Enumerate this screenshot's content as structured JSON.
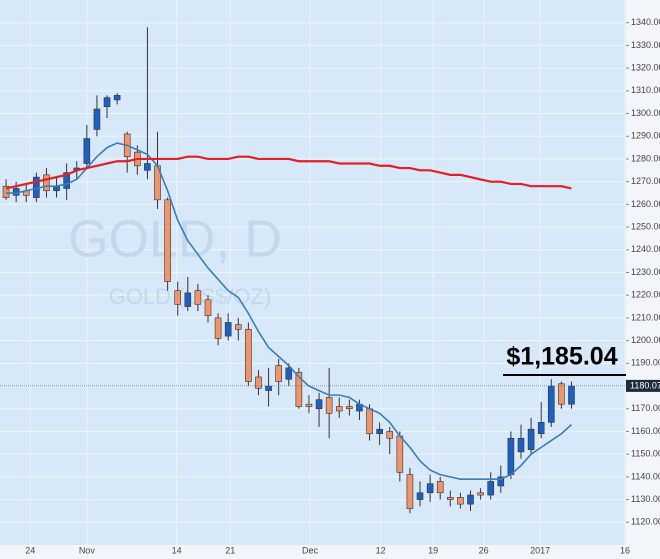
{
  "chart_data": {
    "type": "candlestick",
    "watermark_title": "GOLD, D",
    "watermark_subtitle": "GOLD (US$/OZ)",
    "annotation": "$1,185.04",
    "last_price": 1180.07,
    "up_color": "#1f5fbf",
    "down_color": "#f0956a",
    "x": [
      0,
      1,
      2,
      3,
      4,
      5,
      6,
      7,
      8,
      9,
      10,
      11,
      12,
      13,
      14,
      15,
      16,
      17,
      18,
      19,
      20,
      21,
      22,
      23,
      24,
      25,
      26,
      27,
      28,
      29,
      30,
      31,
      32,
      33,
      34,
      35,
      36,
      37,
      38,
      39,
      40,
      41,
      42,
      43,
      44,
      45,
      46,
      47,
      48,
      49,
      50,
      51,
      52,
      53,
      54,
      55,
      56
    ],
    "open": [
      1268,
      1264,
      1266,
      1263,
      1273,
      1266,
      1267,
      1275,
      1278,
      1293,
      1303,
      1306,
      1291,
      1283,
      1275,
      1277,
      1262,
      1222,
      1215,
      1222,
      1218,
      1210,
      1202,
      1207,
      1205,
      1184,
      1178,
      1189,
      1183,
      1186,
      1172,
      1170,
      1175,
      1171,
      1171,
      1169,
      1170,
      1159,
      1160,
      1158,
      1141,
      1130,
      1133,
      1138,
      1131,
      1131,
      1128,
      1133,
      1132,
      1136,
      1141,
      1151,
      1152,
      1159,
      1164,
      1181,
      1172
    ],
    "high": [
      1271,
      1270,
      1269,
      1274,
      1276,
      1272,
      1278,
      1279,
      1295,
      1308,
      1308,
      1309,
      1292,
      1286,
      1338,
      1292,
      1263,
      1226,
      1228,
      1225,
      1220,
      1212,
      1212,
      1210,
      1208,
      1187,
      1188,
      1192,
      1190,
      1188,
      1176,
      1177,
      1188,
      1175,
      1174,
      1174,
      1172,
      1164,
      1162,
      1160,
      1144,
      1138,
      1141,
      1140,
      1134,
      1133,
      1134,
      1135,
      1142,
      1145,
      1160,
      1163,
      1166,
      1173,
      1183,
      1182,
      1182
    ],
    "low": [
      1262,
      1261,
      1261,
      1261,
      1263,
      1263,
      1262,
      1271,
      1276,
      1290,
      1298,
      1304,
      1274,
      1273,
      1271,
      1258,
      1222,
      1211,
      1213,
      1213,
      1208,
      1198,
      1200,
      1200,
      1180,
      1176,
      1171,
      1176,
      1180,
      1170,
      1168,
      1162,
      1157,
      1166,
      1167,
      1165,
      1156,
      1154,
      1150,
      1138,
      1124,
      1127,
      1129,
      1130,
      1127,
      1126,
      1125,
      1130,
      1130,
      1133,
      1139,
      1148,
      1150,
      1157,
      1162,
      1170,
      1170
    ],
    "close": [
      1263,
      1267,
      1264,
      1272,
      1266,
      1268,
      1274,
      1276,
      1289,
      1302,
      1307,
      1308,
      1281,
      1277,
      1278,
      1262,
      1226,
      1216,
      1221,
      1216,
      1211,
      1201,
      1208,
      1205,
      1182,
      1179,
      1180,
      1182,
      1188,
      1171,
      1171,
      1174,
      1168,
      1169,
      1170,
      1172,
      1159,
      1161,
      1157,
      1142,
      1126,
      1133,
      1137,
      1133,
      1130,
      1128,
      1132,
      1132,
      1138,
      1140,
      1157,
      1157,
      1161,
      1164,
      1180,
      1172,
      1180
    ],
    "series": [
      {
        "color": "#3b7db5",
        "values": [
          1265,
          1265,
          1266,
          1267,
          1268,
          1268,
          1269,
          1271,
          1276,
          1281,
          1285,
          1287,
          1286,
          1284,
          1282,
          1277,
          1266,
          1253,
          1244,
          1238,
          1232,
          1227,
          1222,
          1219,
          1212,
          1204,
          1197,
          1193,
          1189,
          1184,
          1180,
          1178,
          1176,
          1176,
          1175,
          1172,
          1170,
          1168,
          1164,
          1158,
          1153,
          1147,
          1143,
          1141,
          1140,
          1139,
          1139,
          1139,
          1139,
          1139,
          1141,
          1145,
          1150,
          1153,
          1156,
          1159,
          1163
        ]
      },
      {
        "color": "#e21f26",
        "values": [
          1267,
          1268,
          1269,
          1270,
          1271,
          1272,
          1273,
          1275,
          1276,
          1277,
          1278,
          1279,
          1279,
          1280,
          1280,
          1280,
          1280,
          1280,
          1281,
          1281,
          1280,
          1280,
          1280,
          1281,
          1281,
          1280,
          1280,
          1280,
          1280,
          1279,
          1279,
          1279,
          1279,
          1278,
          1278,
          1278,
          1278,
          1277,
          1277,
          1276,
          1276,
          1275,
          1275,
          1274,
          1273,
          1273,
          1272,
          1271,
          1270,
          1270,
          1269,
          1269,
          1268,
          1268,
          1268,
          1268,
          1267
        ]
      }
    ],
    "xlim": [
      -0.6,
      61.4
    ],
    "xticks": [
      {
        "value": 2.4,
        "label": "24"
      },
      {
        "value": 8,
        "label": "Nov"
      },
      {
        "value": 16.9,
        "label": "14"
      },
      {
        "value": 22.2,
        "label": "21"
      },
      {
        "value": 30.1,
        "label": "Dec"
      },
      {
        "value": 37.1,
        "label": "12"
      },
      {
        "value": 42.3,
        "label": "19"
      },
      {
        "value": 47.3,
        "label": "26"
      },
      {
        "value": 52.9,
        "label": "2017"
      },
      {
        "value": 61.3,
        "label": "16"
      }
    ],
    "ylim": [
      1110,
      1350
    ],
    "yticks": [
      {
        "value": 1120,
        "label": "1120.00"
      },
      {
        "value": 1130,
        "label": "1130.00"
      },
      {
        "value": 1140,
        "label": "1140.00"
      },
      {
        "value": 1150,
        "label": "1150.00"
      },
      {
        "value": 1160,
        "label": "1160.00"
      },
      {
        "value": 1170,
        "label": "1170.00"
      },
      {
        "value": 1180,
        "label": "1180.00"
      },
      {
        "value": 1190,
        "label": "1190.00"
      },
      {
        "value": 1200,
        "label": "1200.00"
      },
      {
        "value": 1210,
        "label": "1210.00"
      },
      {
        "value": 1220,
        "label": "1220.00"
      },
      {
        "value": 1230,
        "label": "1230.00"
      },
      {
        "value": 1240,
        "label": "1240.00"
      },
      {
        "value": 1250,
        "label": "1250.00"
      },
      {
        "value": 1260,
        "label": "1260.00"
      },
      {
        "value": 1270,
        "label": "1270.00"
      },
      {
        "value": 1280,
        "label": "1280.00"
      },
      {
        "value": 1290,
        "label": "1290.00"
      },
      {
        "value": 1300,
        "label": "1300.00"
      },
      {
        "value": 1310,
        "label": "1310.00"
      },
      {
        "value": 1320,
        "label": "1320.00"
      },
      {
        "value": 1330,
        "label": "1330.00"
      },
      {
        "value": 1340,
        "label": "1340.00"
      }
    ],
    "grid": true
  }
}
